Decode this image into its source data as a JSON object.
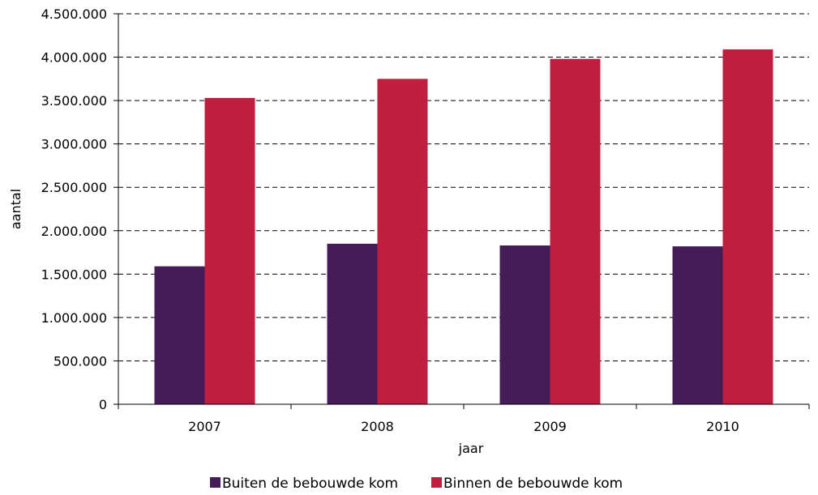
{
  "chart_data": {
    "type": "bar",
    "title": "",
    "xlabel": "jaar",
    "ylabel": "aantal",
    "categories": [
      "2007",
      "2008",
      "2009",
      "2010"
    ],
    "ylim": [
      0,
      4500000
    ],
    "yticks": [
      0,
      500000,
      1000000,
      1500000,
      2000000,
      2500000,
      3000000,
      3500000,
      4000000,
      4500000
    ],
    "ytick_labels": [
      "0",
      "500.000",
      "1.000.000",
      "1.500.000",
      "2.000.000",
      "2.500.000",
      "3.000.000",
      "3.500.000",
      "4.000.000",
      "4.500.000"
    ],
    "grid": "horizontal dashed",
    "legend_position": "bottom-center",
    "series": [
      {
        "name": "Buiten de bebouwde kom",
        "color": "#451c57",
        "values": [
          1590000,
          1850000,
          1830000,
          1820000
        ]
      },
      {
        "name": "Binnen de bebouwde kom",
        "color": "#c01e3e",
        "values": [
          3530000,
          3750000,
          3980000,
          4090000
        ]
      }
    ]
  }
}
